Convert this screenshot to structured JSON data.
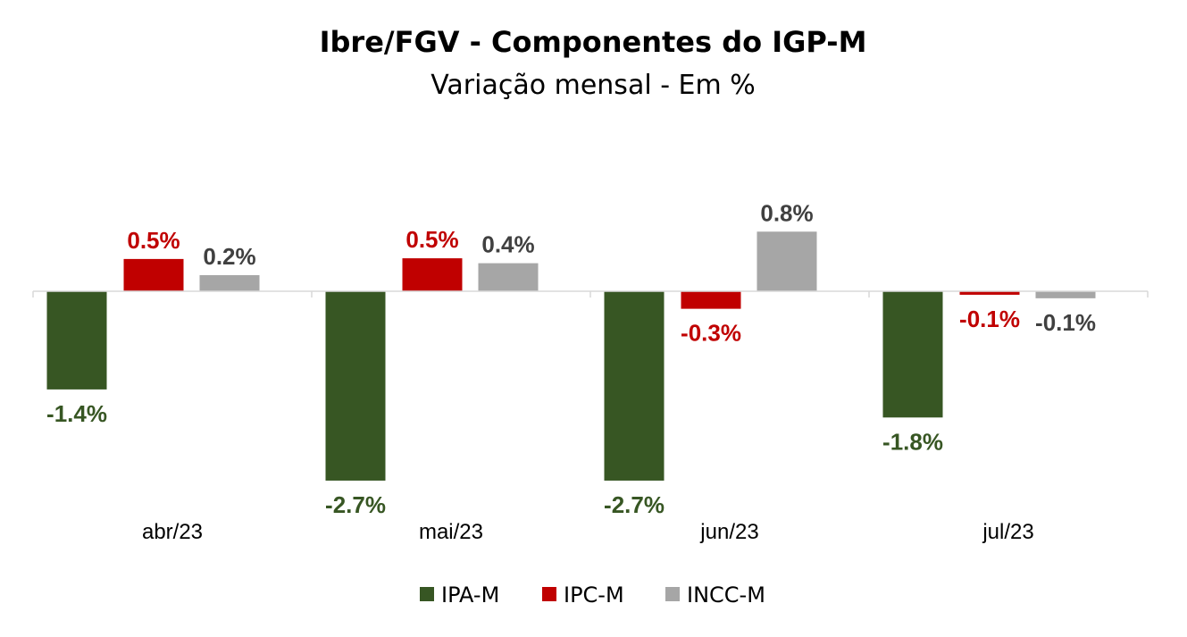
{
  "chart_data": {
    "type": "bar",
    "title": "Ibre/FGV - Componentes do IGP-M",
    "subtitle": "Variação mensal - Em %",
    "categories": [
      "abr/23",
      "mai/23",
      "jun/23",
      "jul/23"
    ],
    "series": [
      {
        "name": "IPA-M",
        "color": "#375623",
        "values": [
          -1.4,
          -2.7,
          -2.7,
          -1.8
        ],
        "labels": [
          "-1.4%",
          "-2.7%",
          "-2.7%",
          "-1.8%"
        ]
      },
      {
        "name": "IPC-M",
        "color": "#c00000",
        "values": [
          0.46,
          0.47,
          -0.25,
          -0.05
        ],
        "labels": [
          "0.5%",
          "0.5%",
          "-0.3%",
          "-0.1%"
        ]
      },
      {
        "name": "INCC-M",
        "color": "#a6a6a6",
        "label_color": "#404040",
        "values": [
          0.23,
          0.4,
          0.85,
          -0.1
        ],
        "labels": [
          "0.2%",
          "0.4%",
          "0.8%",
          "-0.1%"
        ]
      }
    ],
    "ylim": [
      -3.0,
      1.0
    ],
    "grid": false,
    "legend": "bottom"
  }
}
